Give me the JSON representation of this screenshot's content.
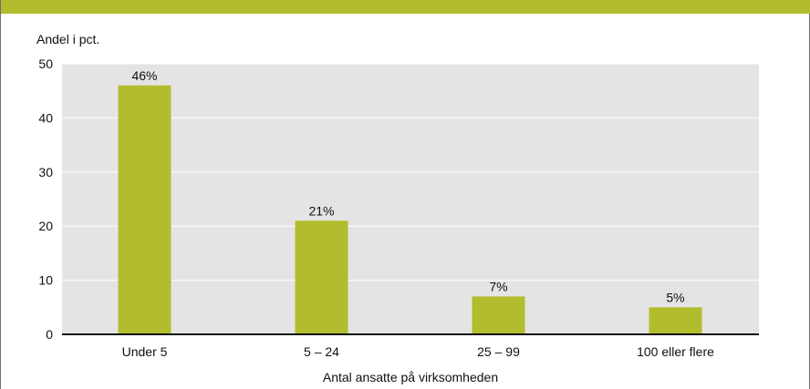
{
  "colors": {
    "band": "#b2bd2d",
    "bar": "#b2bd2d",
    "plot_bg": "#e4e4e4",
    "grid": "#ffffff",
    "axis": "#111111"
  },
  "chart_data": {
    "type": "bar",
    "ylabel": "Andel i pct.",
    "xlabel": "Antal ansatte på virksomheden",
    "categories": [
      "Under 5",
      "5 – 24",
      "25 – 99",
      "100 eller flere"
    ],
    "values": [
      46,
      21,
      7,
      5
    ],
    "value_labels": [
      "46%",
      "21%",
      "7%",
      "5%"
    ],
    "ylim": [
      0,
      50
    ],
    "yticks": [
      0,
      10,
      20,
      30,
      40,
      50
    ],
    "grid": true
  }
}
